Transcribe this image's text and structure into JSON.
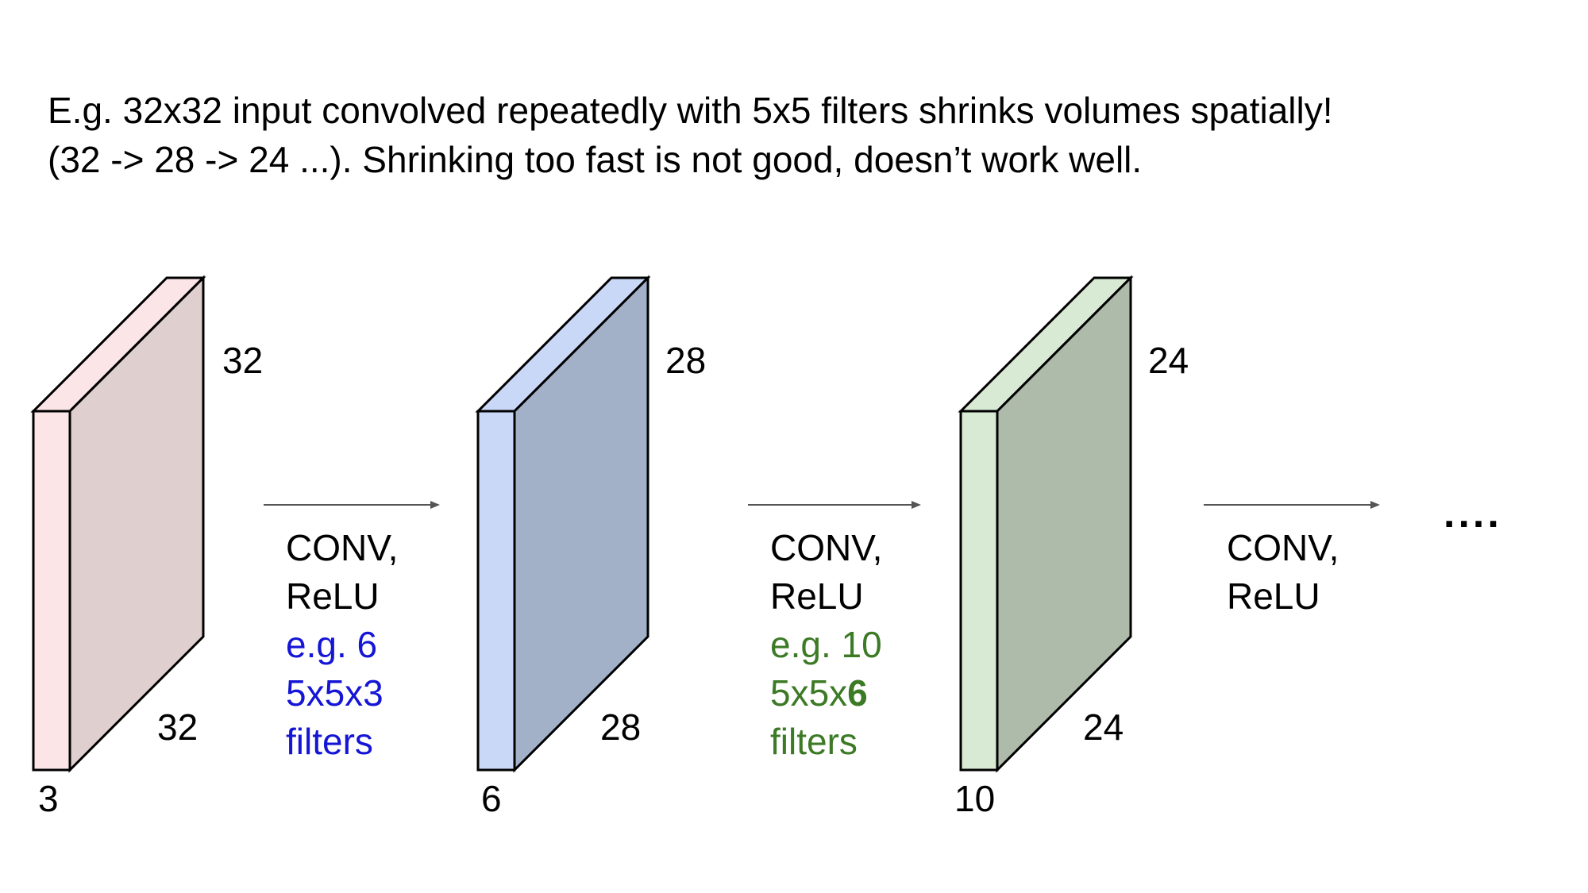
{
  "heading": {
    "line1": "E.g. 32x32 input convolved repeatedly with 5x5 filters shrinks volumes spatially!",
    "line2": "(32 -> 28 -> 24 ...). Shrinking too fast is not good, doesn’t work well."
  },
  "volumes": [
    {
      "height_label": "32",
      "width_label": "32",
      "depth_label": "3",
      "front_color": "#fbe5e6",
      "side_color": "#dfcfcf"
    },
    {
      "height_label": "28",
      "width_label": "28",
      "depth_label": "6",
      "front_color": "#c9d8f7",
      "side_color": "#a2b1c8"
    },
    {
      "height_label": "24",
      "width_label": "24",
      "depth_label": "10",
      "front_color": "#d8e9d4",
      "side_color": "#aebbaa"
    }
  ],
  "ops": [
    {
      "line1": "CONV,",
      "line2": "ReLU",
      "line3": "e.g. 6",
      "line4": "5x5x3",
      "line5": "filters"
    },
    {
      "line1": "CONV,",
      "line2": "ReLU",
      "line3": "e.g. 10",
      "line4_pre": "5x5x",
      "line4_bold": "6",
      "line5": "filters"
    },
    {
      "line1": "CONV,",
      "line2": "ReLU"
    }
  ],
  "ellipsis": "....",
  "colors": {
    "stroke": "#000000",
    "arrow": "#555555",
    "blue_text": "#1515d6",
    "green_text": "#3c7a26"
  }
}
